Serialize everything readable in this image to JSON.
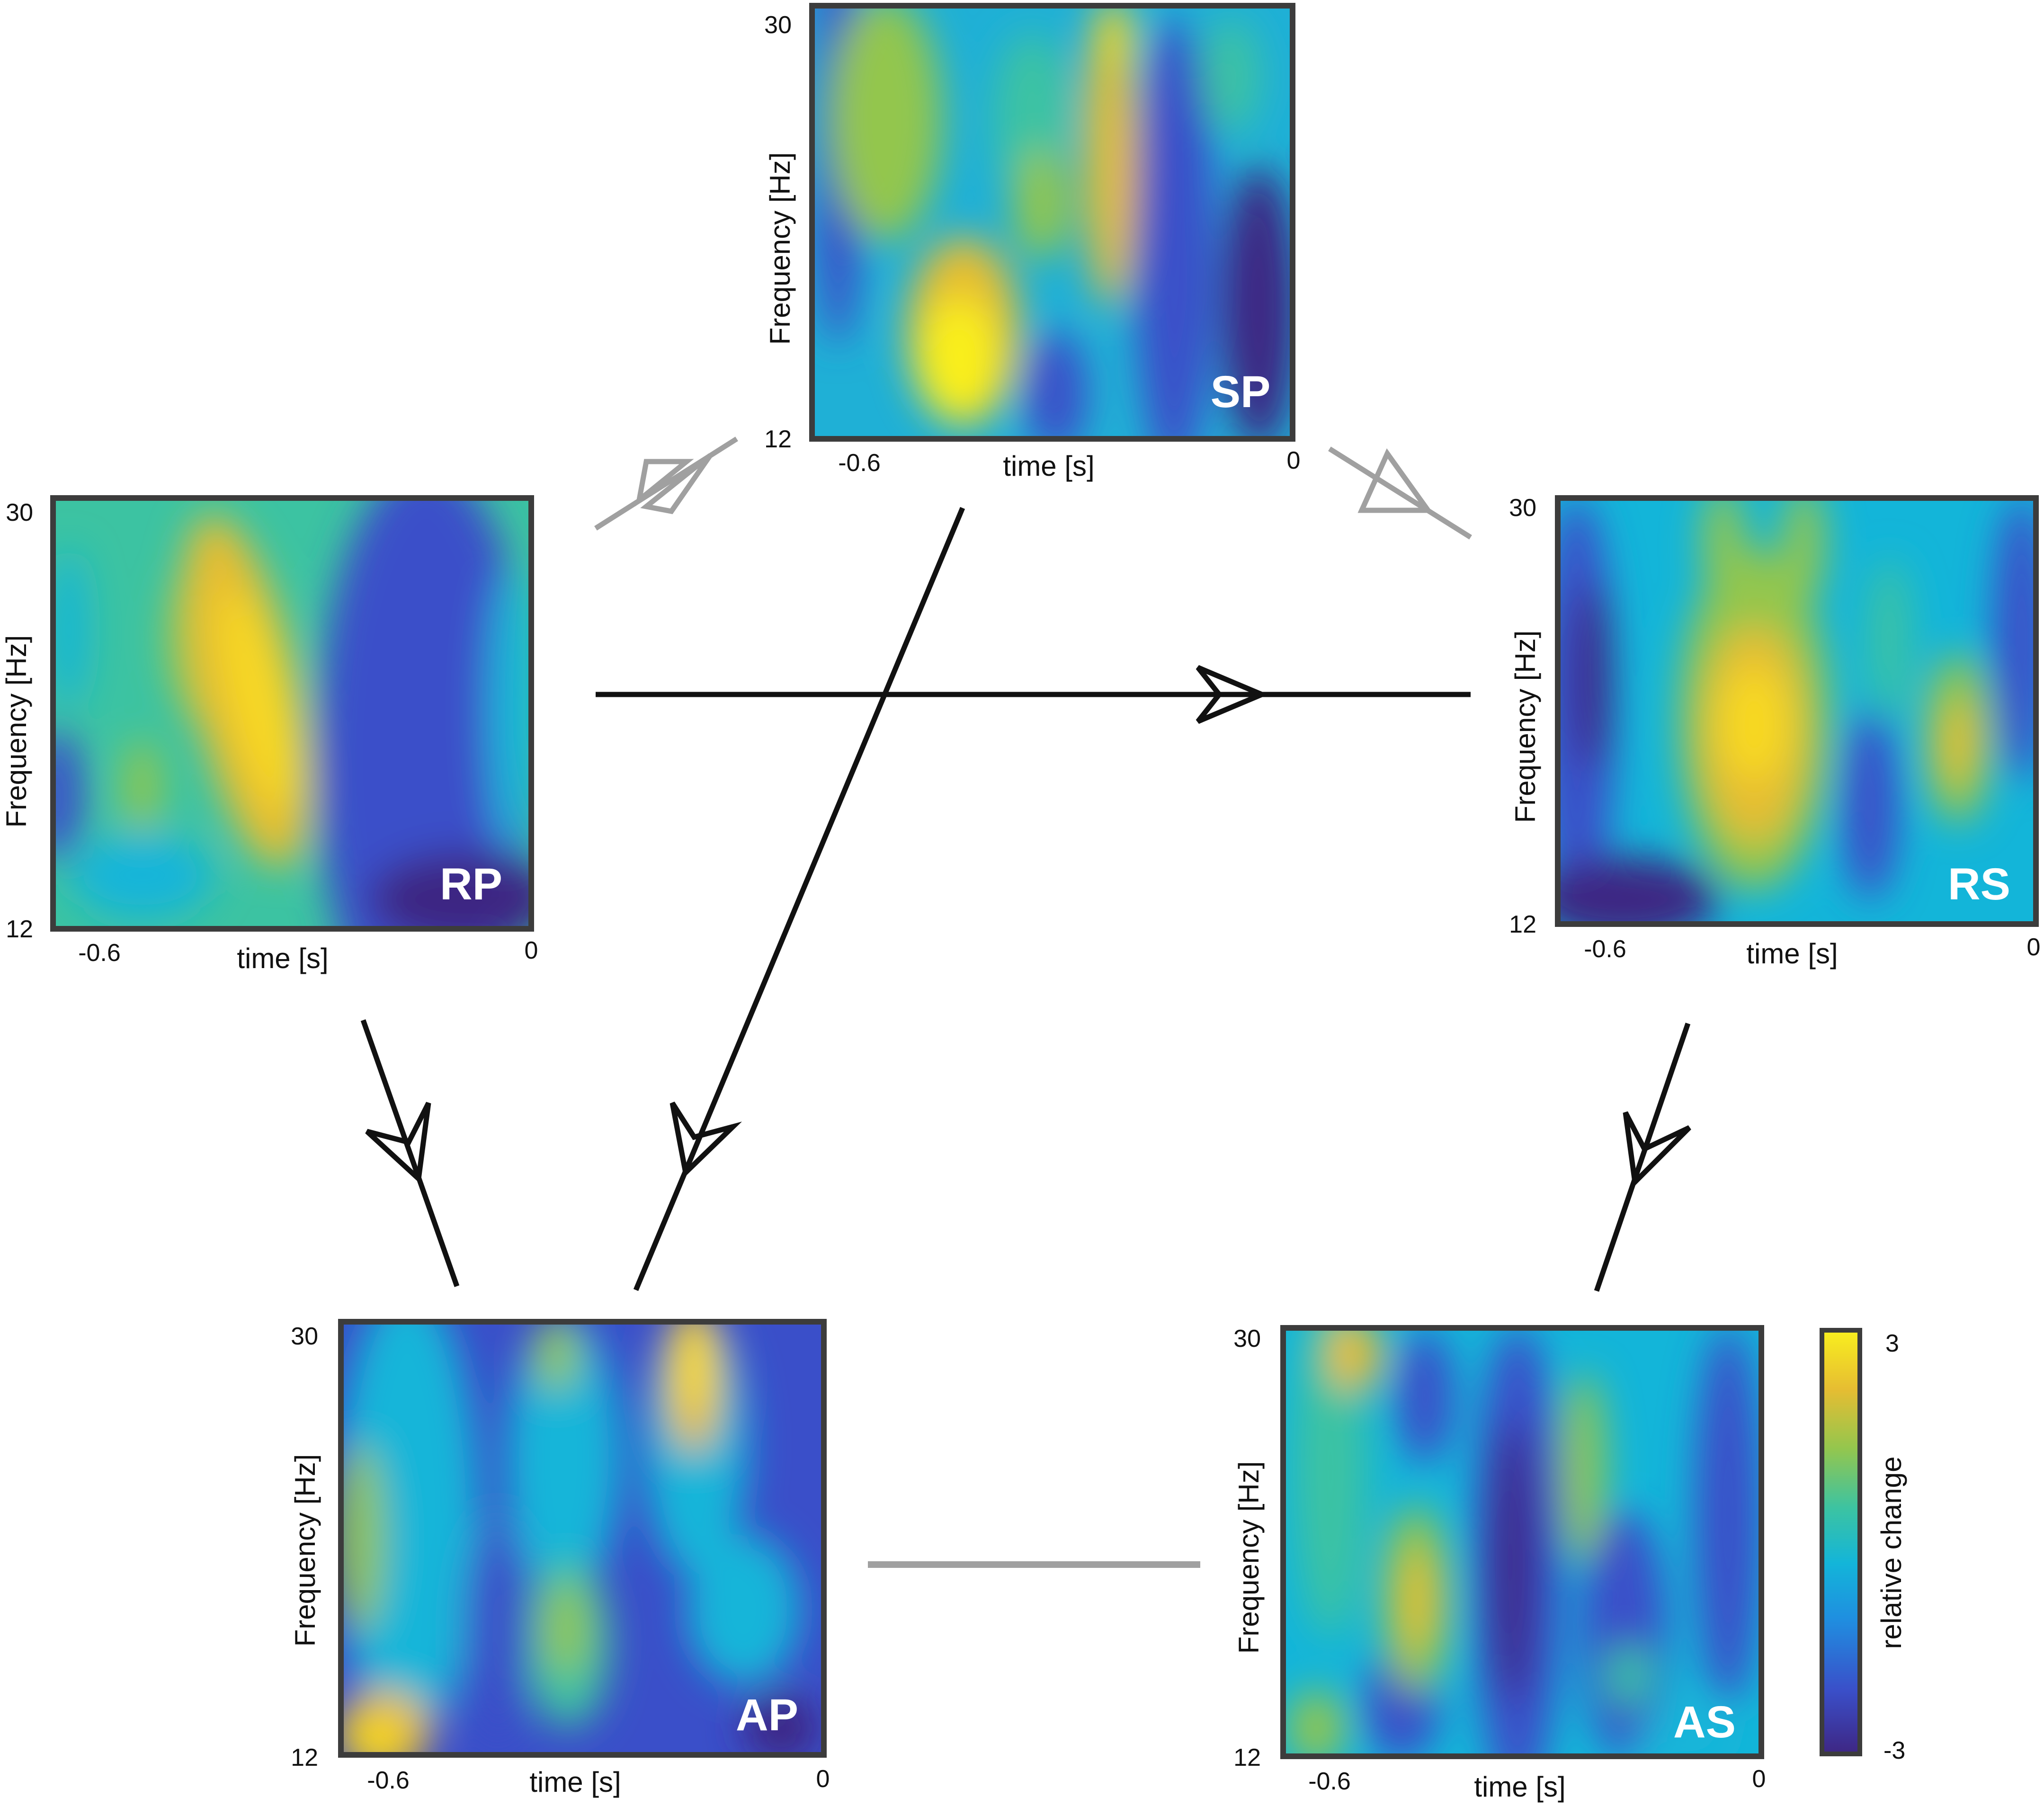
{
  "colors": {
    "frame": "#3c3c3c",
    "arrow_black": "#111111",
    "arrow_gray": "#a0a0a0",
    "panel_label": "#ffffff",
    "colormap": [
      "#3e2683",
      "#3a4fc9",
      "#1f8fe0",
      "#13b5d9",
      "#3cc3a2",
      "#93c64e",
      "#e6bd32",
      "#f8d922",
      "#f9ef1e"
    ]
  },
  "panels": [
    {
      "id": "SP",
      "label": "SP",
      "y_top": "30",
      "y_bottom": "12",
      "x_left": "-0.6",
      "x_right": "0",
      "xlabel": "time [s]",
      "ylabel": "Frequency [Hz]"
    },
    {
      "id": "RP",
      "label": "RP",
      "y_top": "30",
      "y_bottom": "12",
      "x_left": "-0.6",
      "x_right": "0",
      "xlabel": "time [s]",
      "ylabel": "Frequency [Hz]"
    },
    {
      "id": "RS",
      "label": "RS",
      "y_top": "30",
      "y_bottom": "12",
      "x_left": "-0.6",
      "x_right": "0",
      "xlabel": "time [s]",
      "ylabel": "Frequency [Hz]"
    },
    {
      "id": "AP",
      "label": "AP",
      "y_top": "30",
      "y_bottom": "12",
      "x_left": "-0.6",
      "x_right": "0",
      "xlabel": "time [s]",
      "ylabel": "Frequency [Hz]"
    },
    {
      "id": "AS",
      "label": "AS",
      "y_top": "30",
      "y_bottom": "12",
      "x_left": "-0.6",
      "x_right": "0",
      "xlabel": "time [s]",
      "ylabel": "Frequency [Hz]"
    }
  ],
  "colorbar": {
    "max_label": "3",
    "min_label": "-3",
    "label": "relative change"
  },
  "connections": [
    {
      "from": "RP",
      "to": "SP",
      "style": "gray",
      "direction": "bidirectional"
    },
    {
      "from": "SP",
      "to": "RS",
      "style": "gray",
      "direction": "forward"
    },
    {
      "from": "RP",
      "to": "RS",
      "style": "black",
      "direction": "forward"
    },
    {
      "from": "SP",
      "to": "AP",
      "style": "black",
      "direction": "forward"
    },
    {
      "from": "RP",
      "to": "AP",
      "style": "black",
      "direction": "forward"
    },
    {
      "from": "RS",
      "to": "AS",
      "style": "black",
      "direction": "forward"
    },
    {
      "from": "AP",
      "to": "AS",
      "style": "gray",
      "direction": "undirected"
    }
  ]
}
